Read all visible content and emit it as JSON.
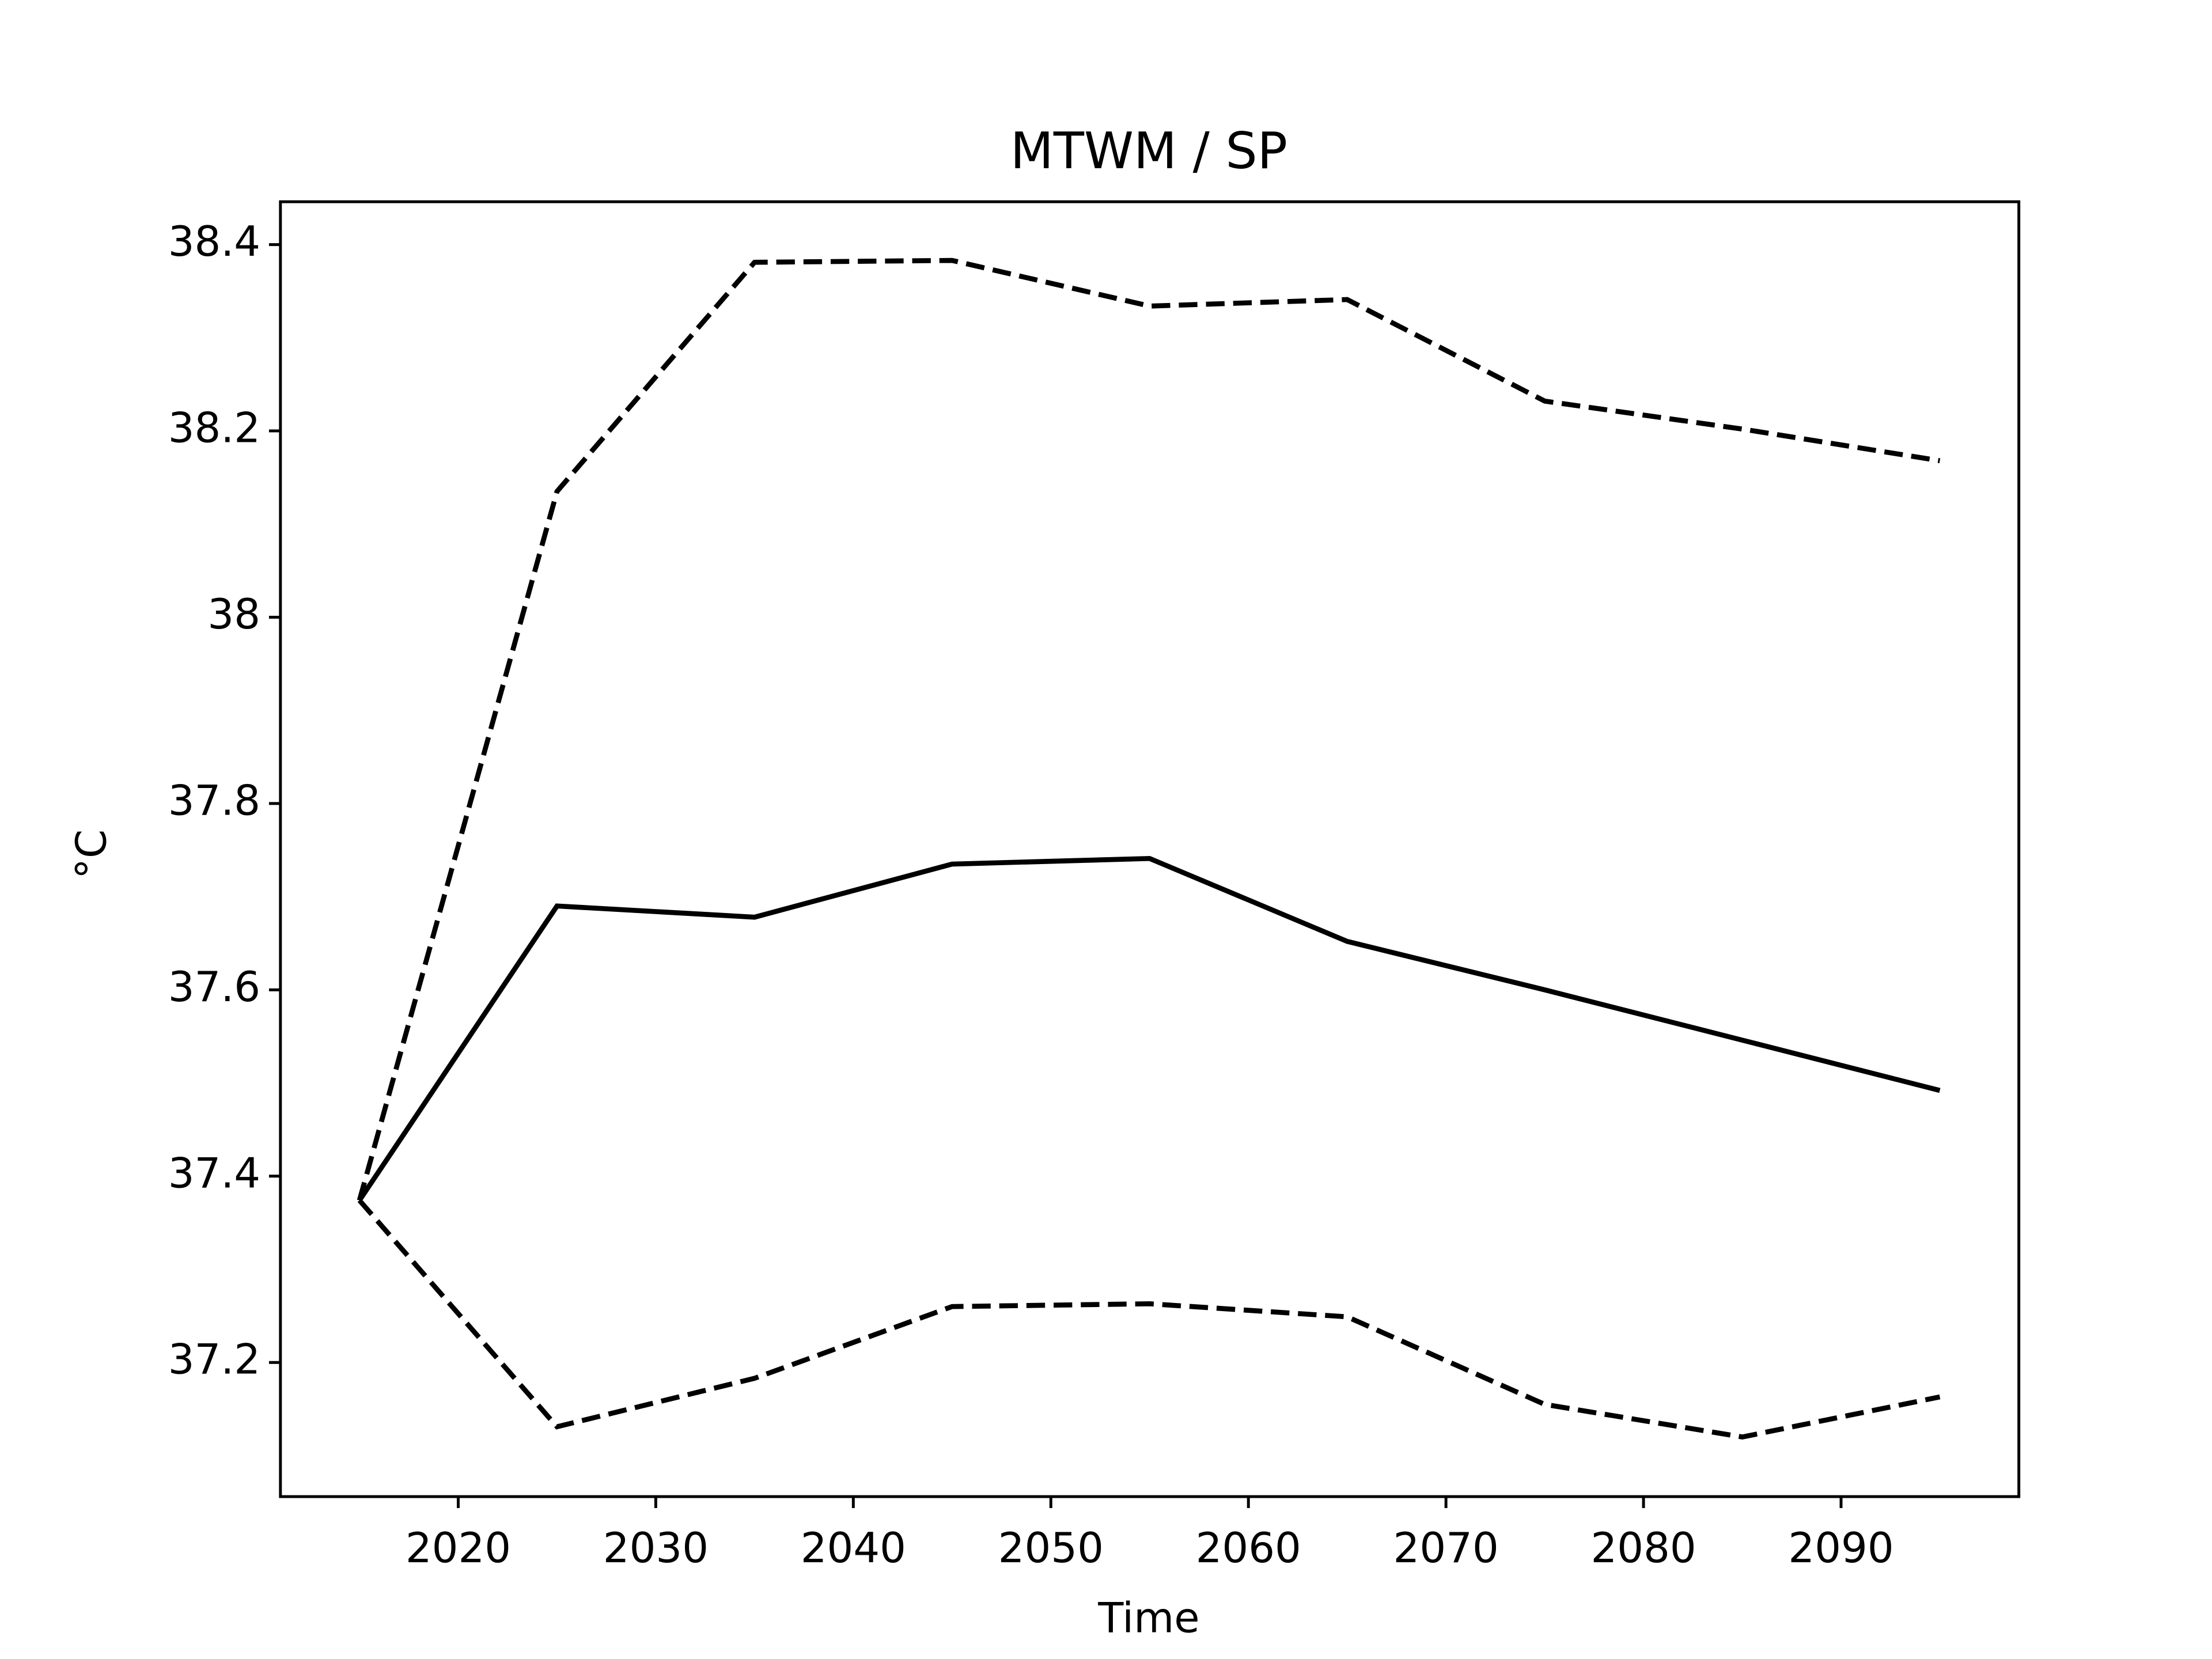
{
  "chart_data": {
    "type": "line",
    "title": "MTWM / SP",
    "xlabel": "Time",
    "ylabel": "°C",
    "x": [
      2015,
      2025,
      2035,
      2045,
      2055,
      2065,
      2075,
      2085,
      2095
    ],
    "series": [
      {
        "color": "#000000",
        "style": "solid",
        "values": [
          37.374,
          37.69,
          37.678,
          37.735,
          37.741,
          37.652,
          37.6,
          37.546,
          37.492
        ]
      },
      {
        "color": "#000000",
        "style": "dashed",
        "values": [
          37.374,
          38.135,
          38.381,
          38.383,
          38.334,
          38.341,
          38.232,
          38.202,
          38.168
        ]
      },
      {
        "color": "#000000",
        "style": "dashed",
        "values": [
          37.374,
          37.131,
          37.183,
          37.26,
          37.263,
          37.249,
          37.155,
          37.12,
          37.163
        ]
      }
    ],
    "xlim": [
      2011,
      2099
    ],
    "xticks": [
      2020,
      2030,
      2040,
      2050,
      2060,
      2070,
      2080,
      2090
    ],
    "ylim": [
      37.056,
      38.446
    ],
    "yticks": [
      37.2,
      37.4,
      37.6,
      37.8,
      38.0,
      38.2,
      38.4
    ],
    "grid": false
  }
}
